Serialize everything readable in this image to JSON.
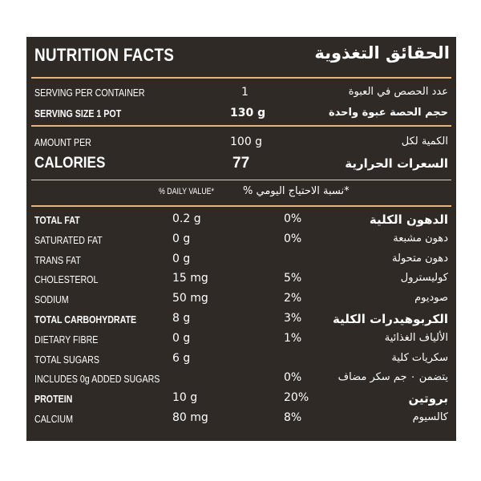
{
  "header": {
    "title_en": "NUTRITION FACTS",
    "title_ar": "الحقائق التغذوية"
  },
  "colors": {
    "panel_background": "#2f2a26",
    "accent_rule": "#e9b477",
    "text": "#ffffff"
  },
  "serving": {
    "per_container_en": "SERVING PER CONTAINER",
    "per_container_value": "1",
    "per_container_ar": "عدد الحصص في العبوة",
    "size_en": "SERVING SIZE 1 POT",
    "size_value": "130 g",
    "size_ar": "حجم الحصة عبوة واحدة"
  },
  "amount": {
    "label_en": "AMOUNT PER",
    "value": "100 g",
    "label_ar": "الكمية لكل",
    "calories_en": "CALORIES",
    "calories_value": "77",
    "calories_ar": "السعرات الحرارية"
  },
  "daily_value": {
    "label_en": "% DAILY VALUE*",
    "label_ar": "*نسبة الاحتياج اليومي %"
  },
  "nutrients": [
    {
      "en": "TOTAL FAT",
      "amount": "0.2 g",
      "dv": "0%",
      "ar": "الدهون الكلية",
      "bold": true
    },
    {
      "en": "SATURATED FAT",
      "amount": "0 g",
      "dv": "0%",
      "ar": "دهون مشبعة",
      "bold": false
    },
    {
      "en": "TRANS FAT",
      "amount": "0 g",
      "dv": "",
      "ar": "دهون متحولة",
      "bold": false
    },
    {
      "en": "CHOLESTEROL",
      "amount": "15 mg",
      "dv": "5%",
      "ar": "كوليسترول",
      "bold": false
    },
    {
      "en": "SODIUM",
      "amount": "50 mg",
      "dv": "2%",
      "ar": "صوديوم",
      "bold": false
    },
    {
      "en": "TOTAL CARBOHYDRATE",
      "amount": "8 g",
      "dv": "3%",
      "ar": "الكربوهيدرات الكلية",
      "bold": true
    },
    {
      "en": "DIETARY FIBRE",
      "amount": "0 g",
      "dv": "1%",
      "ar": "الألياف الغذائية",
      "bold": false
    },
    {
      "en": "TOTAL SUGARS",
      "amount": "6 g",
      "dv": "",
      "ar": "سكريات كلية",
      "bold": false
    },
    {
      "en": "INCLUDES 0g ADDED SUGARS",
      "amount": "",
      "dv": "0%",
      "ar": "يتضمن ٠ جم سكر مضاف",
      "bold": false
    },
    {
      "en": "PROTEIN",
      "amount": "10 g",
      "dv": "20%",
      "ar": "بروتين",
      "bold": true
    },
    {
      "en": "CALCIUM",
      "amount": "80 mg",
      "dv": "8%",
      "ar": "كالسيوم",
      "bold": false
    }
  ]
}
